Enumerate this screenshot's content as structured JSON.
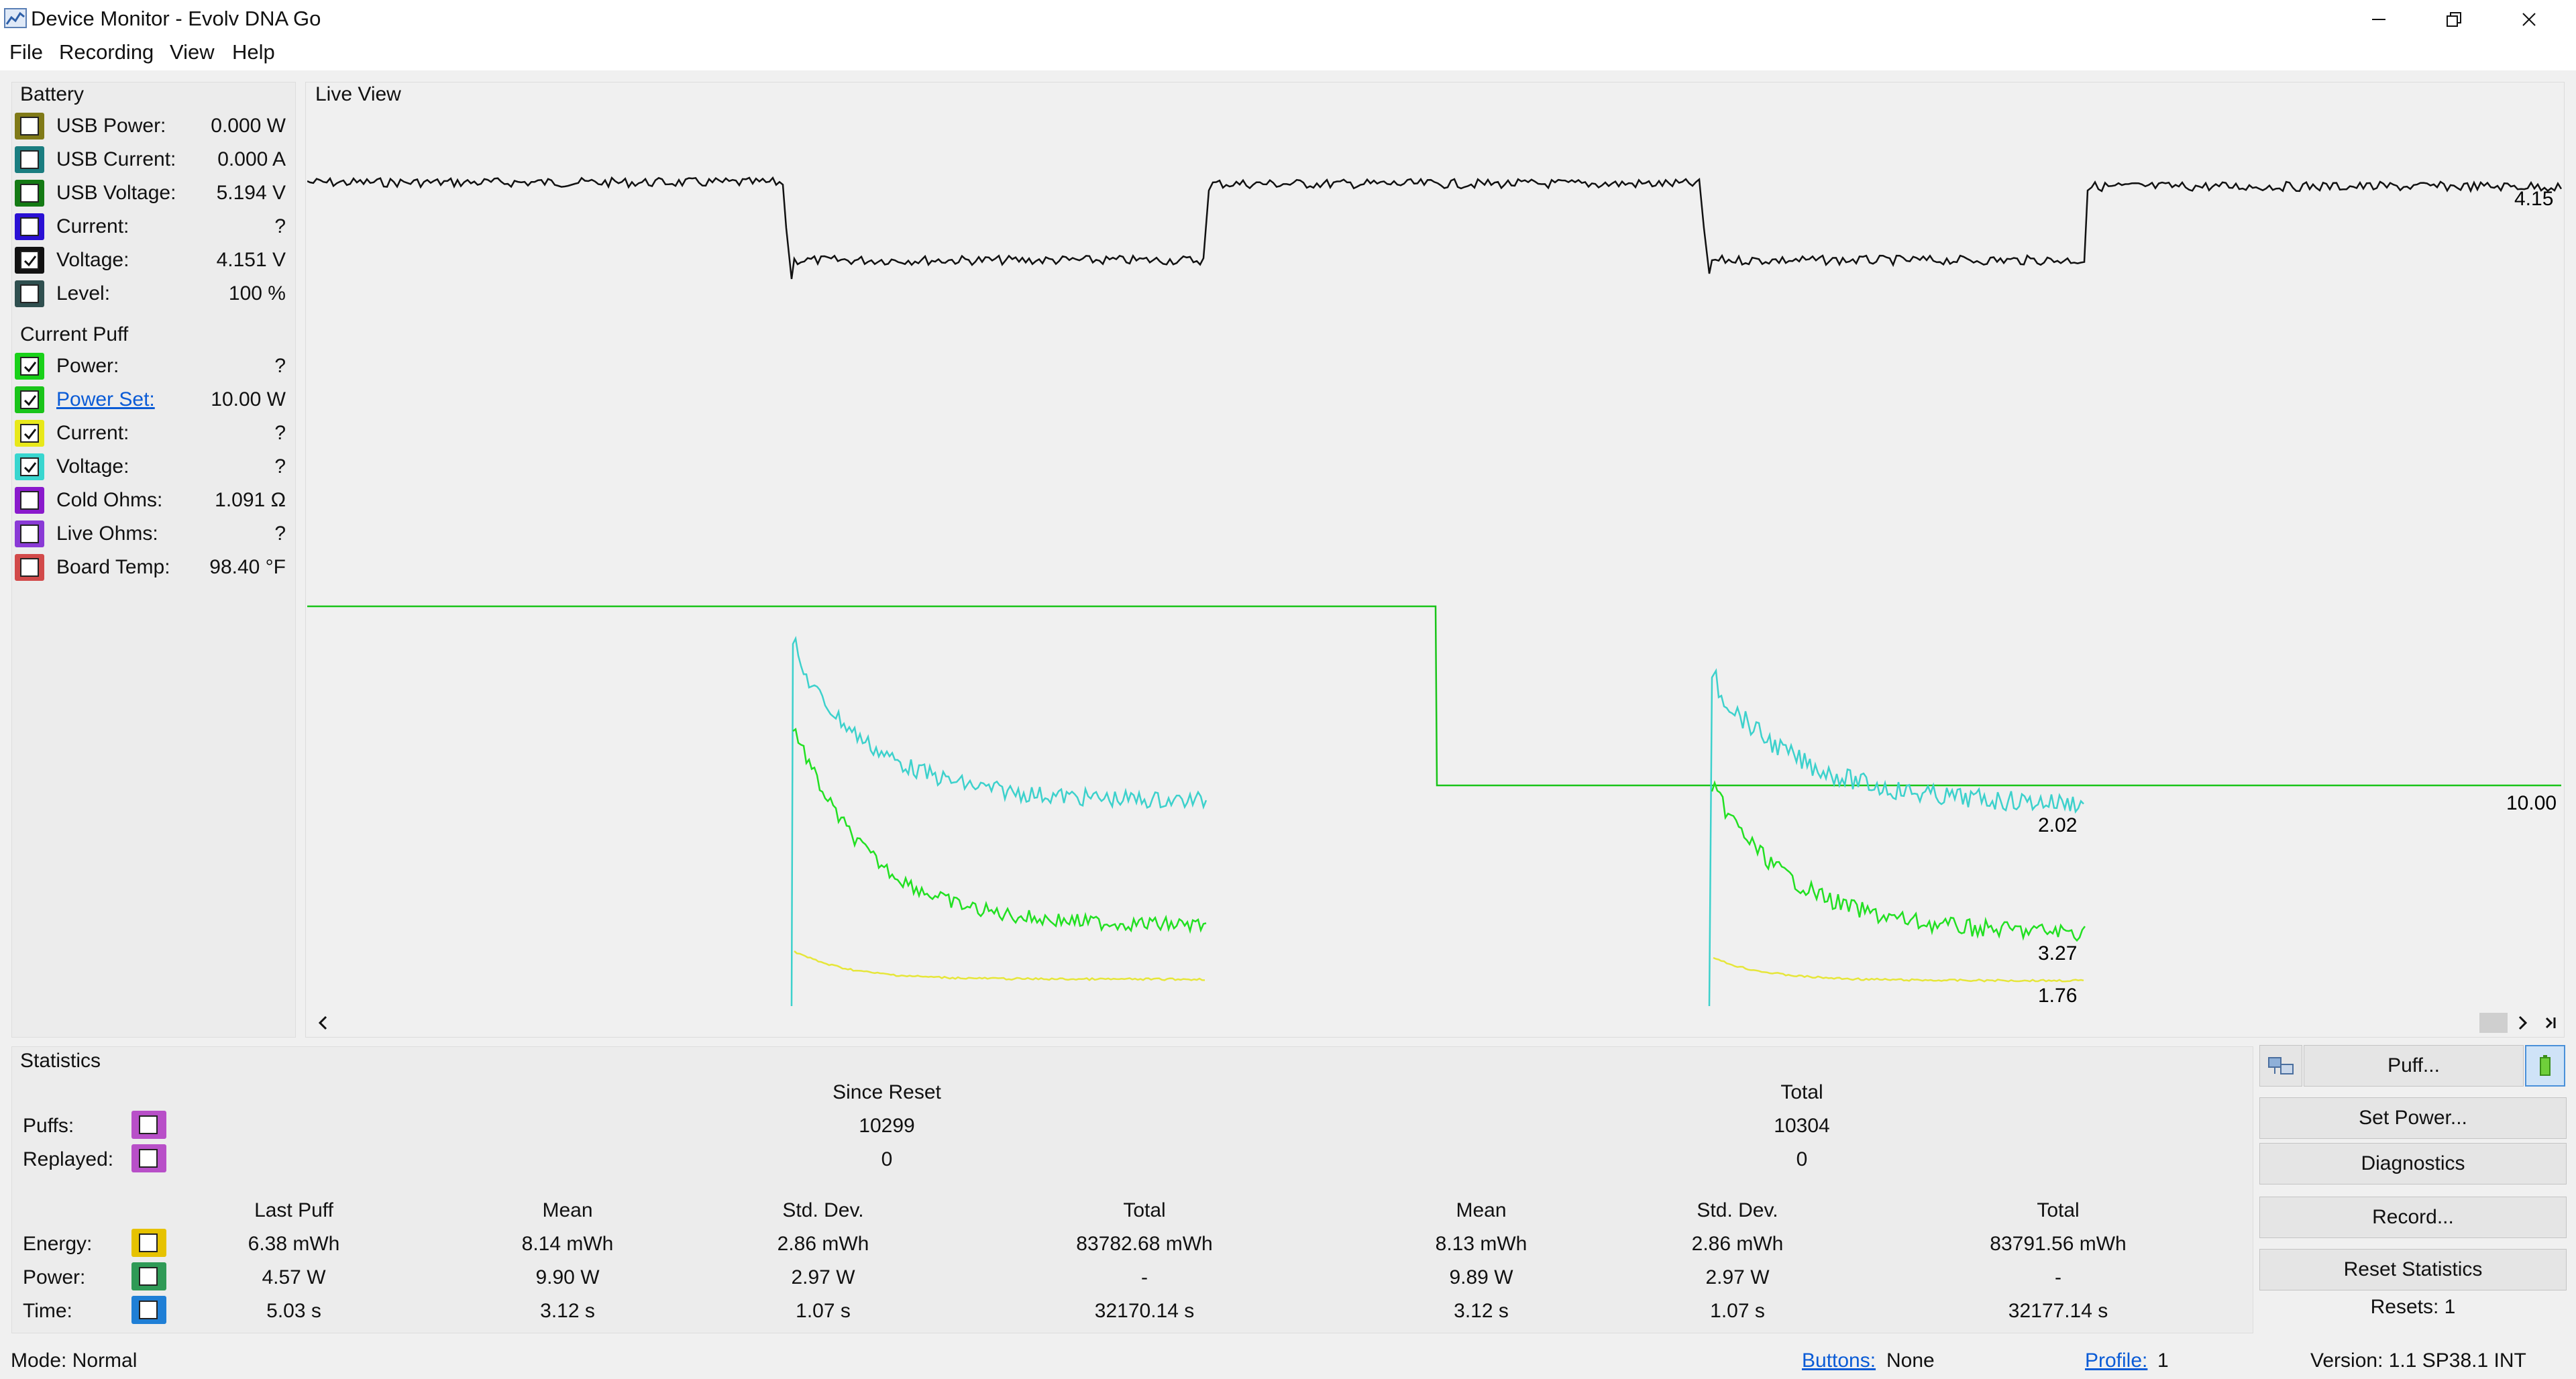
{
  "window": {
    "title": "Device Monitor - Evolv DNA Go"
  },
  "menu": [
    "File",
    "Recording",
    "View",
    "Help"
  ],
  "battery": {
    "title": "Battery",
    "rows": [
      {
        "label": "USB Power:",
        "value": "0.000 W",
        "color": "#807a18",
        "checked": false
      },
      {
        "label": "USB Current:",
        "value": "0.000 A",
        "color": "#1a7d80",
        "checked": false
      },
      {
        "label": "USB Voltage:",
        "value": "5.194 V",
        "color": "#147a14",
        "checked": false
      },
      {
        "label": "Current:",
        "value": "?",
        "color": "#2a10d4",
        "checked": false
      },
      {
        "label": "Voltage:",
        "value": "4.151 V",
        "color": "#111111",
        "checked": true
      },
      {
        "label": "Level:",
        "value": "100 %",
        "color": "#2f4f4f",
        "checked": false
      }
    ]
  },
  "current_puff": {
    "title": "Current Puff",
    "rows": [
      {
        "label": "Power:",
        "value": "?",
        "color": "#19d119",
        "checked": true
      },
      {
        "label": "Power Set:",
        "value": "10.00 W",
        "color": "#19c419",
        "checked": true,
        "link": true
      },
      {
        "label": "Current:",
        "value": "?",
        "color": "#e8e81a",
        "checked": true
      },
      {
        "label": "Voltage:",
        "value": "?",
        "color": "#39d6cf",
        "checked": true
      },
      {
        "label": "Cold Ohms:",
        "value": "1.091 Ω",
        "color": "#8a1acc",
        "checked": false
      },
      {
        "label": "Live Ohms:",
        "value": "?",
        "color": "#8a3ad6",
        "checked": false
      },
      {
        "label": "Board Temp:",
        "value": "98.40 °F",
        "color": "#d24a4a",
        "checked": false
      }
    ]
  },
  "live_view": {
    "title": "Live View",
    "labels": {
      "voltage": "4.15",
      "power_set": "10.00",
      "voltage_puff": "2.02",
      "power": "3.27",
      "current": "1.76"
    },
    "colors": {
      "voltage": "#111111",
      "power_set": "#19c419",
      "power": "#22e022",
      "puff_voltage": "#3dd1cc",
      "current": "#e6e63a"
    }
  },
  "statistics": {
    "title": "Statistics",
    "since_reset_label": "Since Reset",
    "total_label": "Total",
    "puffs_label": "Puffs:",
    "replayed_label": "Replayed:",
    "puffs_since": "10299",
    "puffs_total": "10304",
    "replayed_since": "0",
    "replayed_total": "0",
    "headers": [
      "Last Puff",
      "Mean",
      "Std. Dev.",
      "Total",
      "Mean",
      "Std. Dev.",
      "Total"
    ],
    "rows": [
      {
        "label": "Energy:",
        "color": "#e6c200",
        "values": [
          "6.38 mWh",
          "8.14 mWh",
          "2.86 mWh",
          "83782.68 mWh",
          "8.13 mWh",
          "2.86 mWh",
          "83791.56 mWh"
        ]
      },
      {
        "label": "Power:",
        "color": "#2f9a56",
        "values": [
          "4.57 W",
          "9.90 W",
          "2.97 W",
          "-",
          "9.89 W",
          "2.97 W",
          "-"
        ]
      },
      {
        "label": "Time:",
        "color": "#1f7fd6",
        "values": [
          "5.03 s",
          "3.12 s",
          "1.07 s",
          "32170.14 s",
          "3.12 s",
          "1.07 s",
          "32177.14 s"
        ]
      }
    ],
    "puffs_color": "#b84fc8",
    "replayed_color": "#b84fc8"
  },
  "buttons": {
    "puff": "Puff...",
    "set_power": "Set Power...",
    "diagnostics": "Diagnostics",
    "record": "Record...",
    "reset_statistics": "Reset Statistics",
    "resets": "Resets: 1"
  },
  "status": {
    "mode": "Mode: Normal",
    "buttons_label": "Buttons:",
    "buttons_value": "None",
    "profile_label": "Profile:",
    "profile_value": "1",
    "version": "Version: 1.1 SP38.1 INT"
  }
}
